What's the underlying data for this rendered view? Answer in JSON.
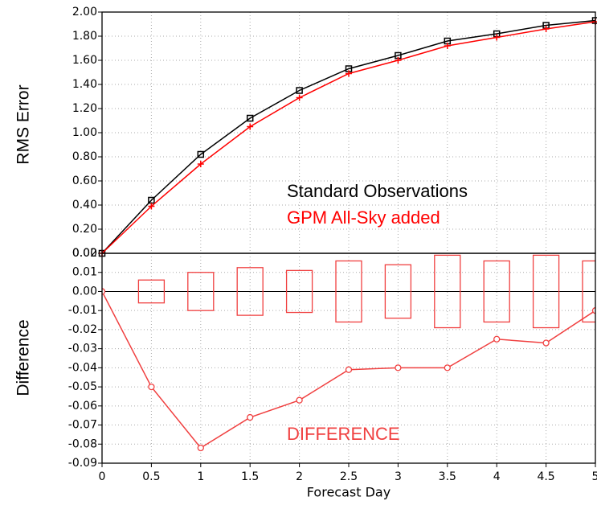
{
  "chart_data": [
    {
      "type": "line",
      "y_label": "RMS Error",
      "x": [
        0,
        0.5,
        1,
        1.5,
        2,
        2.5,
        3,
        3.5,
        4,
        4.5,
        5
      ],
      "xlim": [
        0,
        5
      ],
      "xticks": [
        0,
        0.5,
        1,
        1.5,
        2,
        2.5,
        3,
        3.5,
        4,
        4.5,
        5
      ],
      "ylim": [
        0,
        2
      ],
      "yticks": [
        {
          "value": 0,
          "label": "0.00"
        },
        {
          "value": 0.2,
          "label": "0.20"
        },
        {
          "value": 0.4,
          "label": "0.40"
        },
        {
          "value": 0.6,
          "label": "0.60"
        },
        {
          "value": 0.8,
          "label": "0.80"
        },
        {
          "value": 1.0,
          "label": "1.00"
        },
        {
          "value": 1.2,
          "label": "1.20"
        },
        {
          "value": 1.4,
          "label": "1.40"
        },
        {
          "value": 1.6,
          "label": "1.60"
        },
        {
          "value": 1.8,
          "label": "1.80"
        },
        {
          "value": 2.0,
          "label": "2.00"
        }
      ],
      "grid": true,
      "series": [
        {
          "name": "Standard Observations",
          "color": "#000000",
          "marker": "square",
          "values": [
            0,
            0.44,
            0.82,
            1.12,
            1.35,
            1.53,
            1.64,
            1.76,
            1.82,
            1.89,
            1.93
          ]
        },
        {
          "name": "GPM All-Sky added",
          "color": "#ff0000",
          "marker": "plus",
          "values": [
            0,
            0.39,
            0.74,
            1.05,
            1.29,
            1.49,
            1.6,
            1.72,
            1.79,
            1.86,
            1.92
          ]
        }
      ]
    },
    {
      "type": "line",
      "y_label": "Difference",
      "x_label": "Forecast Day",
      "x": [
        0,
        0.5,
        1,
        1.5,
        2,
        2.5,
        3,
        3.5,
        4,
        4.5,
        5
      ],
      "xlim": [
        0,
        5
      ],
      "xticks": [
        0,
        0.5,
        1,
        1.5,
        2,
        2.5,
        3,
        3.5,
        4,
        4.5,
        5
      ],
      "ylim": [
        -0.09,
        0.02
      ],
      "yticks": [
        {
          "value": -0.09,
          "label": "-0.09"
        },
        {
          "value": -0.08,
          "label": "-0.08"
        },
        {
          "value": -0.07,
          "label": "-0.07"
        },
        {
          "value": -0.06,
          "label": "-0.06"
        },
        {
          "value": -0.05,
          "label": "-0.05"
        },
        {
          "value": -0.04,
          "label": "-0.04"
        },
        {
          "value": -0.03,
          "label": "-0.03"
        },
        {
          "value": -0.02,
          "label": "-0.02"
        },
        {
          "value": -0.01,
          "label": "-0.01"
        },
        {
          "value": 0,
          "label": "0.00"
        },
        {
          "value": 0.01,
          "label": "0.01"
        },
        {
          "value": 0.02,
          "label": "0.02"
        }
      ],
      "grid": true,
      "series": [
        {
          "name": "DIFFERENCE",
          "color": "#f04040",
          "marker": "circle",
          "values": [
            0,
            -0.05,
            -0.082,
            -0.066,
            -0.057,
            -0.041,
            -0.04,
            -0.04,
            -0.025,
            -0.027,
            -0.01
          ]
        }
      ],
      "intervals": {
        "color": "#f04040",
        "upper": [
          null,
          0.006,
          0.01,
          0.0125,
          0.011,
          0.016,
          0.014,
          0.019,
          0.016,
          0.019,
          0.016
        ],
        "lower": [
          null,
          -0.006,
          -0.01,
          -0.0125,
          -0.011,
          -0.016,
          -0.014,
          -0.019,
          -0.016,
          -0.019,
          -0.016
        ]
      }
    }
  ]
}
